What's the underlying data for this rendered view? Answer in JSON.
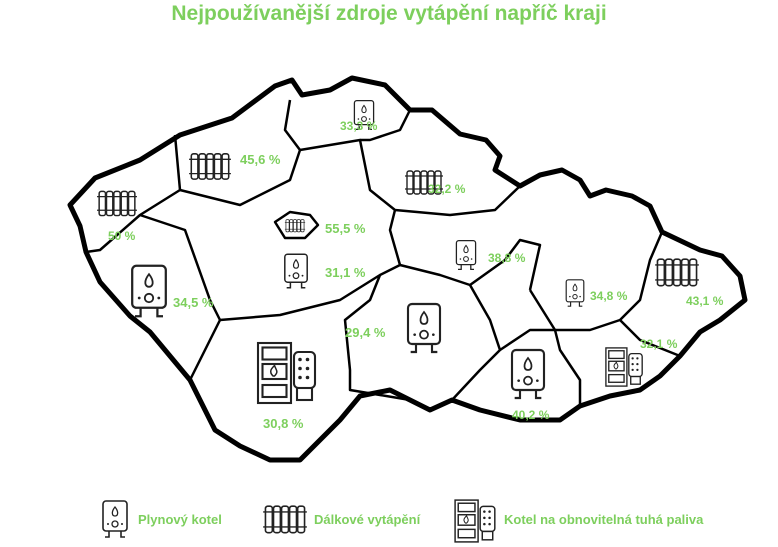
{
  "title": "Nejpoužívanější zdroje vytápění napříč kraji",
  "accent_color": "#7dcf5d",
  "regions": [
    {
      "value": "33,3 %",
      "source": "gas"
    },
    {
      "value": "45,6 %",
      "source": "district"
    },
    {
      "value": "32,2 %",
      "source": "district"
    },
    {
      "value": "50 %",
      "source": "district"
    },
    {
      "value": "55,5 %",
      "source": "district"
    },
    {
      "value": "31,1 %",
      "source": "gas"
    },
    {
      "value": "38,8 %",
      "source": "gas"
    },
    {
      "value": "34,5 %",
      "source": "gas"
    },
    {
      "value": "34,8 %",
      "source": "gas"
    },
    {
      "value": "43,1 %",
      "source": "district"
    },
    {
      "value": "29,4 %",
      "source": "gas"
    },
    {
      "value": "32,1 %",
      "source": "solid"
    },
    {
      "value": "30,8 %",
      "source": "solid"
    },
    {
      "value": "40,2 %",
      "source": "gas"
    }
  ],
  "legend": [
    {
      "label": "Plynový kotel",
      "icon": "gas-boiler-icon"
    },
    {
      "label": "Dálkové vytápění",
      "icon": "radiator-icon"
    },
    {
      "label": "Kotel na obnovitelná tuhá paliva",
      "icon": "solid-fuel-boiler-icon"
    }
  ]
}
